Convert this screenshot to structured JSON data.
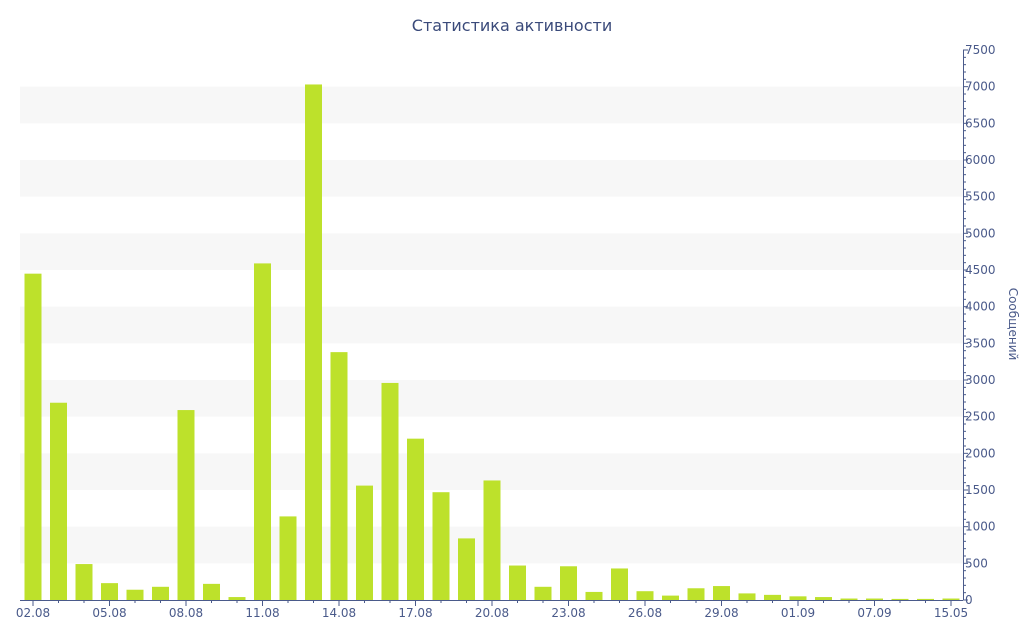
{
  "chart_data": {
    "type": "bar",
    "title": "Статистика активности",
    "ylabel": "Сообщений",
    "xlabel": "",
    "y_axis_side": "right",
    "ylim": [
      0,
      7500
    ],
    "y_ticks": [
      0,
      500,
      1000,
      1500,
      2000,
      2500,
      3000,
      3500,
      4000,
      4500,
      5000,
      5500,
      6000,
      6500,
      7000,
      7500
    ],
    "x_tick_labels": [
      "02.08",
      "05.08",
      "08.08",
      "11.08",
      "14.08",
      "17.08",
      "20.08",
      "23.08",
      "26.08",
      "29.08",
      "01.09",
      "07.09",
      "15.05"
    ],
    "x_tick_indices": [
      0,
      3,
      6,
      9,
      12,
      15,
      18,
      21,
      24,
      27,
      30,
      33,
      36
    ],
    "bar_color": "#bde12b",
    "band_color": "#f7f7f7",
    "axis_color": "#4a5a8a",
    "grid": "alternating horizontal bands",
    "values": [
      4450,
      2690,
      490,
      230,
      140,
      180,
      2590,
      220,
      40,
      4590,
      1140,
      7030,
      3380,
      1560,
      2960,
      2200,
      1470,
      840,
      1630,
      470,
      180,
      460,
      110,
      430,
      120,
      60,
      160,
      190,
      90,
      70,
      50,
      40,
      20,
      20,
      15,
      15,
      20
    ]
  }
}
